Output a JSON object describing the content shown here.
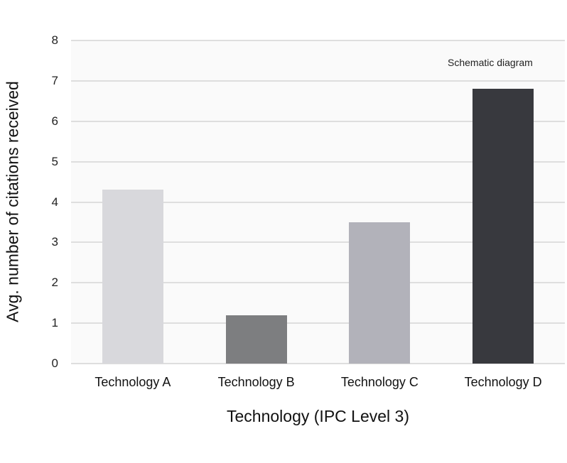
{
  "chart_data": {
    "type": "bar",
    "title": "",
    "annotation": "Schematic diagram",
    "xlabel": "Technology (IPC Level 3)",
    "ylabel": "Avg. number of citations received",
    "categories": [
      "Technology A",
      "Technology B",
      "Technology C",
      "Technology D"
    ],
    "values": [
      4.3,
      1.2,
      3.5,
      6.8
    ],
    "colors": [
      "#d8d8dc",
      "#7d7e80",
      "#b2b2ba",
      "#38393e"
    ],
    "ylim": [
      0,
      8
    ],
    "yticks": [
      "0",
      "1",
      "2",
      "3",
      "4",
      "5",
      "6",
      "7",
      "8"
    ],
    "grid": true,
    "legend": null
  }
}
